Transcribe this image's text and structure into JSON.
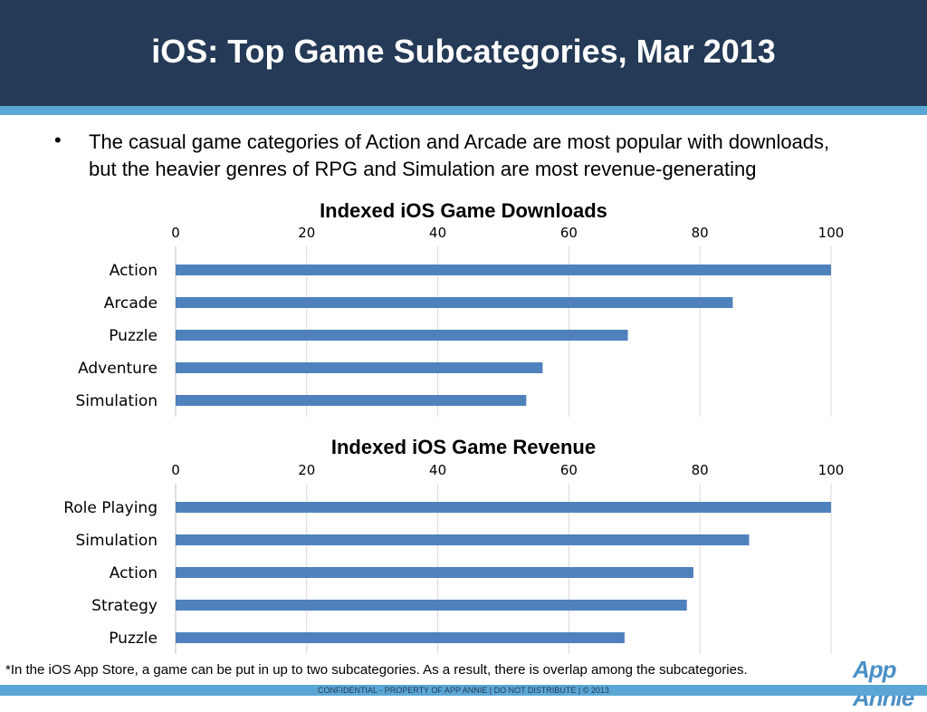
{
  "slide": {
    "title": "iOS:  Top Game Subcategories, Mar 2013",
    "bullet_symbol": "•",
    "bullet_text": "The casual game categories of Action and Arcade are most popular with downloads, but the heavier genres of RPG and Simulation are most revenue-generating",
    "footnote": "*In the iOS App Store, a game can be put in up to two subcategories.  As a result, there is overlap among the subcategories.",
    "logo_text": "App Annie",
    "footer_text": "CONFIDENTIAL - PROPERTY OF APP ANNIE  |  DO NOT DISTRIBUTE  |  © 2013"
  },
  "colors": {
    "header_bg": "#253a56",
    "accent_stripe": "#5aa7d6",
    "bar": "#4f81bd",
    "gridline": "#d9d9d9"
  },
  "chart_data": [
    {
      "type": "bar",
      "orientation": "horizontal",
      "title": "Indexed iOS Game Downloads",
      "categories": [
        "Action",
        "Arcade",
        "Puzzle",
        "Adventure",
        "Simulation"
      ],
      "values": [
        100,
        85,
        69,
        56,
        53.5
      ],
      "xlim": [
        0,
        100
      ],
      "ticks": [
        0,
        20,
        40,
        60,
        80,
        100
      ],
      "tick_position": "top",
      "grid": true,
      "xlabel": "",
      "ylabel": ""
    },
    {
      "type": "bar",
      "orientation": "horizontal",
      "title": "Indexed iOS Game Revenue",
      "categories": [
        "Role Playing",
        "Simulation",
        "Action",
        "Strategy",
        "Puzzle"
      ],
      "values": [
        100,
        87.5,
        79,
        78,
        68.5
      ],
      "xlim": [
        0,
        100
      ],
      "ticks": [
        0,
        20,
        40,
        60,
        80,
        100
      ],
      "tick_position": "top",
      "grid": true,
      "xlabel": "",
      "ylabel": ""
    }
  ]
}
